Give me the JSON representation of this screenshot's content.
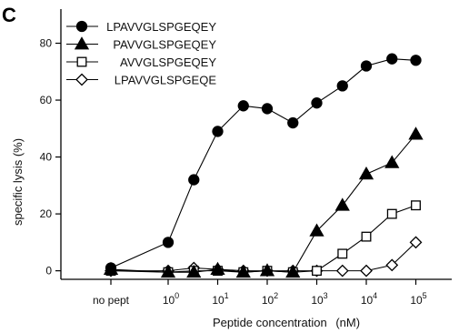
{
  "panel_label": "C",
  "chart_data": {
    "type": "line",
    "xlabel": "Peptide concentration",
    "xlabel_unit": "(nM)",
    "ylabel": "specific lysis (%)",
    "ylim": [
      -3,
      92
    ],
    "yticks": [
      0,
      20,
      40,
      60,
      80
    ],
    "x_scale": "log10 with categorical no-peptide control",
    "x_ticks": [
      {
        "label": "no pept",
        "pos": "control"
      },
      {
        "base": "10",
        "exp": "0",
        "log10": 0
      },
      {
        "base": "10",
        "exp": "1",
        "log10": 1
      },
      {
        "base": "10",
        "exp": "2",
        "log10": 2
      },
      {
        "base": "10",
        "exp": "3",
        "log10": 3
      },
      {
        "base": "10",
        "exp": "4",
        "log10": 4
      },
      {
        "base": "10",
        "exp": "5",
        "log10": 5
      }
    ],
    "legend_position": "top-left",
    "series": [
      {
        "name": "LPAVVGLSPGEQEY",
        "marker": "filled-circle",
        "control": 1,
        "points": [
          {
            "x": 1,
            "y": 10
          },
          {
            "x": 3.3,
            "y": 32
          },
          {
            "x": 10,
            "y": 49
          },
          {
            "x": 33,
            "y": 58
          },
          {
            "x": 100,
            "y": 57
          },
          {
            "x": 330,
            "y": 52
          },
          {
            "x": 1000,
            "y": 59
          },
          {
            "x": 3300,
            "y": 65
          },
          {
            "x": 10000,
            "y": 72
          },
          {
            "x": 33000,
            "y": 74.5
          },
          {
            "x": 100000,
            "y": 74
          }
        ]
      },
      {
        "name": "PAVVGLSPGEQEY",
        "marker": "filled-triangle",
        "control": 0.5,
        "points": [
          {
            "x": 1,
            "y": -0.5
          },
          {
            "x": 3.3,
            "y": -0.5
          },
          {
            "x": 10,
            "y": 0.5
          },
          {
            "x": 33,
            "y": -0.5
          },
          {
            "x": 100,
            "y": 0
          },
          {
            "x": 330,
            "y": -0.5
          },
          {
            "x": 1000,
            "y": 14
          },
          {
            "x": 3300,
            "y": 23
          },
          {
            "x": 10000,
            "y": 34
          },
          {
            "x": 33000,
            "y": 38
          },
          {
            "x": 100000,
            "y": 48
          }
        ]
      },
      {
        "name": "AVVGLSPGEQEY",
        "marker": "open-square",
        "control": 0,
        "points": [
          {
            "x": 1,
            "y": -0.5
          },
          {
            "x": 3.3,
            "y": 0
          },
          {
            "x": 10,
            "y": 0
          },
          {
            "x": 33,
            "y": -0.5
          },
          {
            "x": 100,
            "y": 0
          },
          {
            "x": 330,
            "y": -0.5
          },
          {
            "x": 1000,
            "y": 0
          },
          {
            "x": 3300,
            "y": 6
          },
          {
            "x": 10000,
            "y": 12
          },
          {
            "x": 33000,
            "y": 20
          },
          {
            "x": 100000,
            "y": 23
          }
        ]
      },
      {
        "name": "LPAVVGLSPGEQE",
        "marker": "open-diamond",
        "control": 0,
        "points": [
          {
            "x": 1,
            "y": 0
          },
          {
            "x": 3.3,
            "y": 1
          },
          {
            "x": 10,
            "y": 0.5
          },
          {
            "x": 33,
            "y": 0
          },
          {
            "x": 100,
            "y": 0
          },
          {
            "x": 330,
            "y": 0
          },
          {
            "x": 1000,
            "y": 0
          },
          {
            "x": 3300,
            "y": 0
          },
          {
            "x": 10000,
            "y": 0
          },
          {
            "x": 33000,
            "y": 2
          },
          {
            "x": 100000,
            "y": 10
          }
        ]
      }
    ]
  }
}
